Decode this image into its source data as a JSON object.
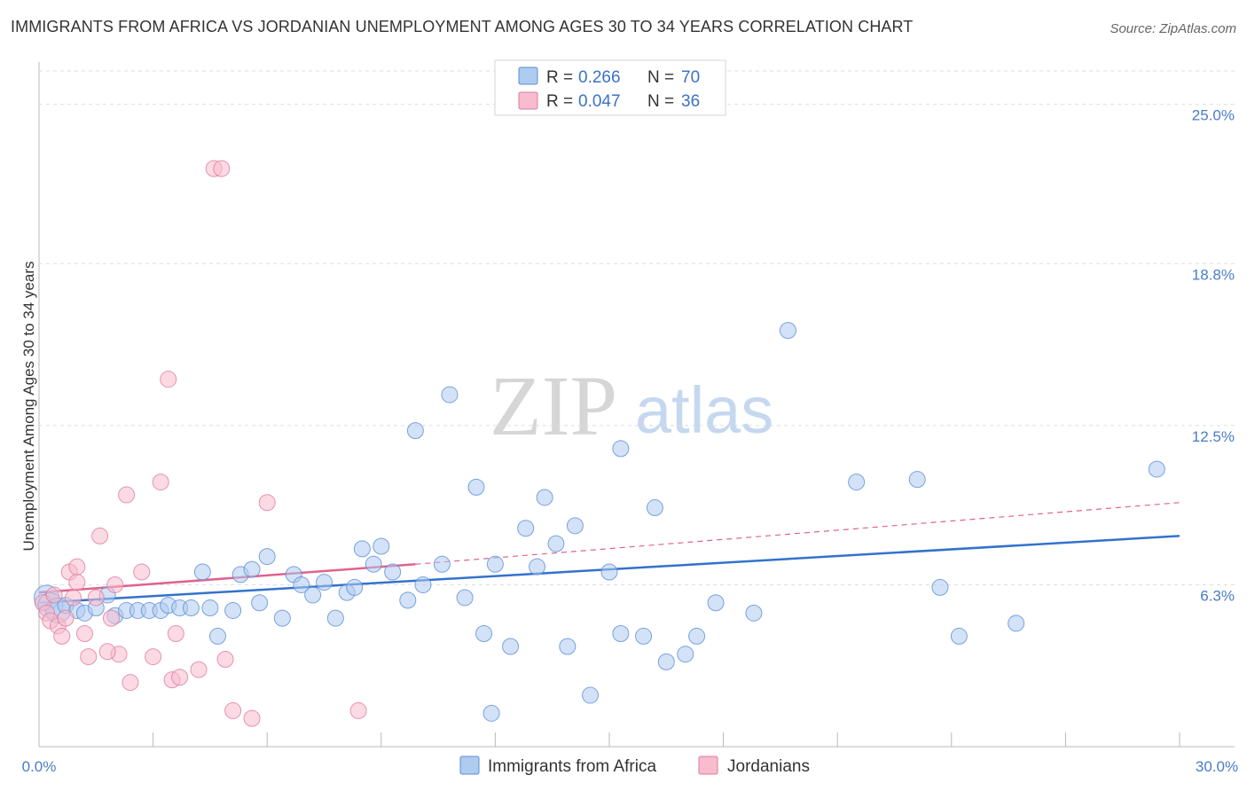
{
  "title": "IMMIGRANTS FROM AFRICA VS JORDANIAN UNEMPLOYMENT AMONG AGES 30 TO 34 YEARS CORRELATION CHART",
  "source": "Source: ZipAtlas.com",
  "watermark": {
    "zip": "ZIP",
    "atlas": "atlas"
  },
  "legend": {
    "r_label": "R =",
    "n_label": "N =",
    "rows": [
      {
        "r": "0.266",
        "n": "70",
        "color": "#aecbf0",
        "stroke": "#5b8fd6"
      },
      {
        "r": "0.047",
        "n": "36",
        "color": "#f7bccd",
        "stroke": "#e07a9c"
      }
    ]
  },
  "chart_data": {
    "type": "scatter",
    "title": "IMMIGRANTS FROM AFRICA VS JORDANIAN UNEMPLOYMENT AMONG AGES 30 TO 34 YEARS CORRELATION CHART",
    "xlabel": "",
    "ylabel": "Unemployment Among Ages 30 to 34 years",
    "xlim": [
      0,
      30
    ],
    "ylim": [
      0,
      26.3
    ],
    "x_tick_labels": [
      "0.0%",
      "30.0%"
    ],
    "y_ticks": [
      6.3,
      12.5,
      18.8,
      25.0
    ],
    "y_tick_labels": [
      "6.3%",
      "12.5%",
      "18.8%",
      "25.0%"
    ],
    "x_minor_ticks": [
      3,
      6,
      9,
      12,
      15,
      18,
      21,
      24,
      27,
      30
    ],
    "series": [
      {
        "name": "Immigrants from Africa",
        "color": "#aecbf0",
        "stroke": "#5b8fd6",
        "trend": {
          "x": [
            0,
            30
          ],
          "y": [
            5.6,
            8.2
          ],
          "color": "#3372cc",
          "dashed_from": null
        },
        "points": [
          [
            0.2,
            5.8
          ],
          [
            0.3,
            5.5
          ],
          [
            0.5,
            5.3
          ],
          [
            0.7,
            5.5
          ],
          [
            1.0,
            5.3
          ],
          [
            1.2,
            5.2
          ],
          [
            1.5,
            5.4
          ],
          [
            1.8,
            5.9
          ],
          [
            2.0,
            5.1
          ],
          [
            2.3,
            5.3
          ],
          [
            2.6,
            5.3
          ],
          [
            2.9,
            5.3
          ],
          [
            3.2,
            5.3
          ],
          [
            3.4,
            5.5
          ],
          [
            3.7,
            5.4
          ],
          [
            4.0,
            5.4
          ],
          [
            4.3,
            6.8
          ],
          [
            4.5,
            5.4
          ],
          [
            4.7,
            4.3
          ],
          [
            5.1,
            5.3
          ],
          [
            5.3,
            6.7
          ],
          [
            5.6,
            6.9
          ],
          [
            5.8,
            5.6
          ],
          [
            6.0,
            7.4
          ],
          [
            6.4,
            5.0
          ],
          [
            6.7,
            6.7
          ],
          [
            6.9,
            6.3
          ],
          [
            7.2,
            5.9
          ],
          [
            7.5,
            6.4
          ],
          [
            7.8,
            5.0
          ],
          [
            8.1,
            6.0
          ],
          [
            8.3,
            6.2
          ],
          [
            8.5,
            7.7
          ],
          [
            8.8,
            7.1
          ],
          [
            9.0,
            7.8
          ],
          [
            9.3,
            6.8
          ],
          [
            9.7,
            5.7
          ],
          [
            9.9,
            12.3
          ],
          [
            10.1,
            6.3
          ],
          [
            10.6,
            7.1
          ],
          [
            10.8,
            13.7
          ],
          [
            11.2,
            5.8
          ],
          [
            11.5,
            10.1
          ],
          [
            11.7,
            4.4
          ],
          [
            11.9,
            1.3
          ],
          [
            12.0,
            7.1
          ],
          [
            12.4,
            3.9
          ],
          [
            12.8,
            8.5
          ],
          [
            13.1,
            7.0
          ],
          [
            13.3,
            9.7
          ],
          [
            13.6,
            7.9
          ],
          [
            13.9,
            3.9
          ],
          [
            14.1,
            8.6
          ],
          [
            14.5,
            2.0
          ],
          [
            15.0,
            6.8
          ],
          [
            15.3,
            11.6
          ],
          [
            15.3,
            4.4
          ],
          [
            15.9,
            4.3
          ],
          [
            16.2,
            9.3
          ],
          [
            16.5,
            3.3
          ],
          [
            17.0,
            3.6
          ],
          [
            17.3,
            4.3
          ],
          [
            17.8,
            5.6
          ],
          [
            18.8,
            5.2
          ],
          [
            19.7,
            16.2
          ],
          [
            21.5,
            10.3
          ],
          [
            23.1,
            10.4
          ],
          [
            23.7,
            6.2
          ],
          [
            24.2,
            4.3
          ],
          [
            25.7,
            4.8
          ],
          [
            29.4,
            10.8
          ]
        ]
      },
      {
        "name": "Jordanians",
        "color": "#f7bccd",
        "stroke": "#e07a9c",
        "trend": {
          "x": [
            0,
            9.9
          ],
          "y": [
            6.0,
            7.1
          ],
          "color": "#e0628d",
          "dashed": {
            "x": [
              9.9,
              30
            ],
            "y": [
              7.1,
              9.5
            ]
          }
        },
        "points": [
          [
            0.1,
            5.6
          ],
          [
            0.2,
            5.2
          ],
          [
            0.3,
            4.9
          ],
          [
            0.4,
            5.9
          ],
          [
            0.5,
            4.7
          ],
          [
            0.6,
            4.3
          ],
          [
            0.7,
            5.0
          ],
          [
            0.8,
            6.8
          ],
          [
            0.9,
            5.8
          ],
          [
            1.0,
            6.4
          ],
          [
            1.0,
            7.0
          ],
          [
            1.2,
            4.4
          ],
          [
            1.3,
            3.5
          ],
          [
            1.5,
            5.8
          ],
          [
            1.6,
            8.2
          ],
          [
            1.9,
            5.0
          ],
          [
            2.0,
            6.3
          ],
          [
            2.1,
            3.6
          ],
          [
            2.3,
            9.8
          ],
          [
            2.4,
            2.5
          ],
          [
            2.7,
            6.8
          ],
          [
            3.0,
            3.5
          ],
          [
            3.2,
            10.3
          ],
          [
            3.4,
            14.3
          ],
          [
            3.5,
            2.6
          ],
          [
            3.6,
            4.4
          ],
          [
            3.7,
            2.7
          ],
          [
            4.2,
            3.0
          ],
          [
            4.6,
            22.5
          ],
          [
            4.8,
            22.5
          ],
          [
            4.9,
            3.4
          ],
          [
            5.1,
            1.4
          ],
          [
            5.6,
            1.1
          ],
          [
            6.0,
            9.5
          ],
          [
            8.4,
            1.4
          ],
          [
            1.8,
            3.7
          ]
        ]
      }
    ]
  },
  "bottom_legend": [
    {
      "label": "Immigrants from Africa",
      "color": "#aecbf0",
      "stroke": "#5b8fd6"
    },
    {
      "label": "Jordanians",
      "color": "#f7bccd",
      "stroke": "#e07a9c"
    }
  ]
}
